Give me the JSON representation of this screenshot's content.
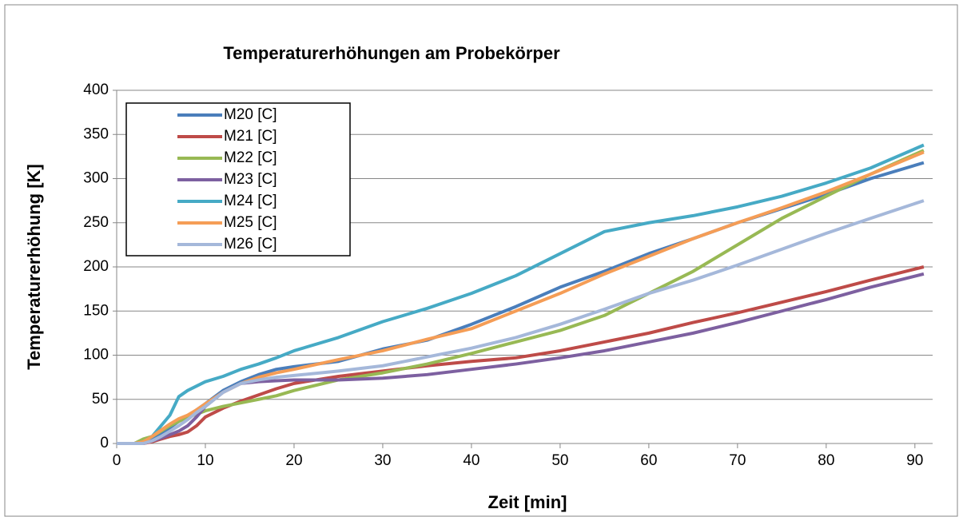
{
  "chart_data": {
    "type": "line",
    "title": "Temperaturerhöhungen am Probekörper",
    "x_label": "Zeit [min]",
    "y_label": "Temperaturerhöhung [K]",
    "x": [
      0,
      2,
      3,
      4,
      5,
      6,
      7,
      8,
      9,
      10,
      12,
      14,
      16,
      18,
      20,
      25,
      30,
      35,
      40,
      45,
      50,
      55,
      60,
      65,
      70,
      75,
      80,
      85,
      91
    ],
    "xlim": [
      0,
      92
    ],
    "xticks": [
      0,
      10,
      20,
      30,
      40,
      50,
      60,
      70,
      80,
      90
    ],
    "ylim": [
      0,
      400
    ],
    "yticks": [
      0,
      50,
      100,
      150,
      200,
      250,
      300,
      350,
      400
    ],
    "grid": true,
    "legend": "upper left",
    "series": [
      {
        "name": "M20 [C]",
        "color": "#4a7ebb",
        "values": [
          0,
          0,
          1,
          4,
          10,
          18,
          25,
          30,
          38,
          45,
          60,
          70,
          78,
          84,
          87,
          93,
          107,
          117,
          135,
          155,
          177,
          195,
          215,
          232,
          250,
          266,
          282,
          300,
          318
        ]
      },
      {
        "name": "M21 [C]",
        "color": "#be4b48",
        "values": [
          0,
          0,
          0,
          2,
          5,
          8,
          10,
          13,
          20,
          30,
          40,
          48,
          55,
          62,
          68,
          76,
          82,
          88,
          93,
          97,
          105,
          115,
          125,
          137,
          148,
          160,
          172,
          185,
          200
        ]
      },
      {
        "name": "M22 [C]",
        "color": "#98b954",
        "values": [
          0,
          0,
          5,
          8,
          14,
          20,
          25,
          30,
          33,
          37,
          42,
          46,
          50,
          54,
          60,
          72,
          80,
          90,
          102,
          115,
          128,
          145,
          170,
          195,
          225,
          255,
          280,
          305,
          332
        ]
      },
      {
        "name": "M23 [C]",
        "color": "#7d60a0",
        "values": [
          0,
          0,
          0,
          3,
          6,
          10,
          14,
          20,
          30,
          42,
          58,
          68,
          70,
          71,
          72,
          72,
          74,
          78,
          84,
          90,
          97,
          105,
          115,
          125,
          137,
          150,
          163,
          177,
          192
        ]
      },
      {
        "name": "M24 [C]",
        "color": "#46aac5",
        "values": [
          0,
          0,
          2,
          8,
          20,
          32,
          53,
          60,
          65,
          70,
          76,
          84,
          90,
          97,
          105,
          120,
          138,
          153,
          170,
          190,
          215,
          240,
          250,
          258,
          268,
          280,
          295,
          312,
          338
        ]
      },
      {
        "name": "M25 [C]",
        "color": "#f59d56",
        "values": [
          0,
          0,
          2,
          8,
          15,
          22,
          28,
          32,
          38,
          45,
          58,
          68,
          75,
          80,
          84,
          95,
          105,
          118,
          130,
          150,
          170,
          192,
          212,
          232,
          250,
          267,
          285,
          305,
          330
        ]
      },
      {
        "name": "M26 [C]",
        "color": "#a5b8da",
        "values": [
          0,
          0,
          0,
          3,
          8,
          14,
          20,
          27,
          35,
          42,
          58,
          68,
          72,
          75,
          77,
          82,
          88,
          98,
          108,
          120,
          135,
          152,
          170,
          185,
          202,
          220,
          238,
          255,
          275
        ]
      }
    ]
  }
}
